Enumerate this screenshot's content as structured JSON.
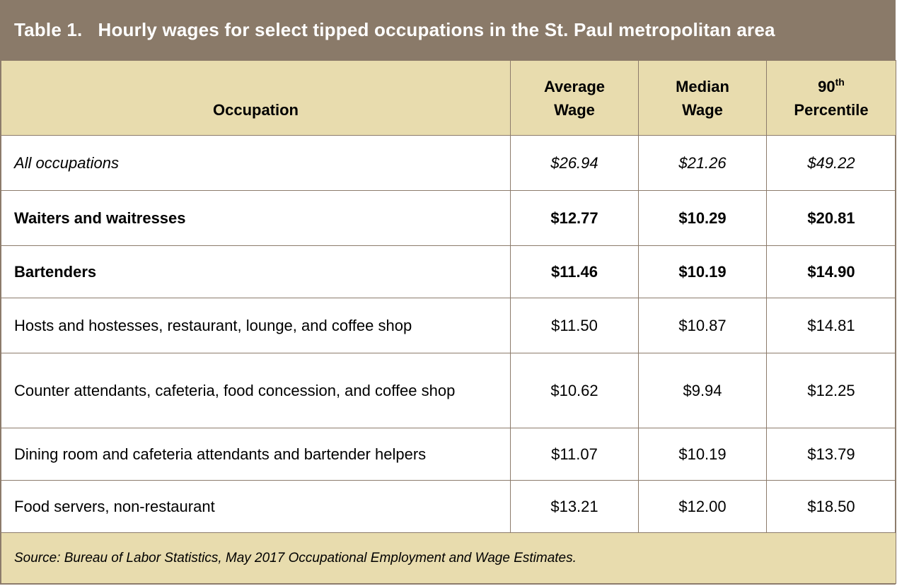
{
  "title": {
    "label": "Table 1.",
    "text": "Hourly wages for select tipped occupations in the St. Paul metropolitan area"
  },
  "headers": {
    "occupation": "Occupation",
    "average_line1": "Average",
    "average_line2": "Wage",
    "median_line1": "Median",
    "median_line2": "Wage",
    "p90_number": "90",
    "p90_suffix": "th",
    "p90_line2": "Percentile"
  },
  "rows": [
    {
      "occupation": "All occupations",
      "average": "$26.94",
      "median": "$21.26",
      "p90": "$49.22",
      "style": "italic"
    },
    {
      "occupation": "Waiters and waitresses",
      "average": "$12.77",
      "median": "$10.29",
      "p90": "$20.81",
      "style": "bold"
    },
    {
      "occupation": "Bartenders",
      "average": "$11.46",
      "median": "$10.19",
      "p90": "$14.90",
      "style": "bold"
    },
    {
      "occupation": "Hosts and hostesses, restaurant, lounge, and coffee shop",
      "average": "$11.50",
      "median": "$10.87",
      "p90": "$14.81",
      "style": "normal"
    },
    {
      "occupation": "Counter attendants, cafeteria, food concession, and coffee shop",
      "average": "$10.62",
      "median": "$9.94",
      "p90": "$12.25",
      "style": "normal"
    },
    {
      "occupation": "Dining room and cafeteria attendants and bartender helpers",
      "average": "$11.07",
      "median": "$10.19",
      "p90": "$13.79",
      "style": "normal"
    },
    {
      "occupation": "Food servers, non-restaurant",
      "average": "$13.21",
      "median": "$12.00",
      "p90": "$18.50",
      "style": "normal"
    }
  ],
  "source": "Source: Bureau of Labor Statistics, May 2017 Occupational Employment and Wage Estimates.",
  "colors": {
    "title_bg": "#8a7a69",
    "header_bg": "#e8dcae",
    "border": "#8c7b6b"
  }
}
